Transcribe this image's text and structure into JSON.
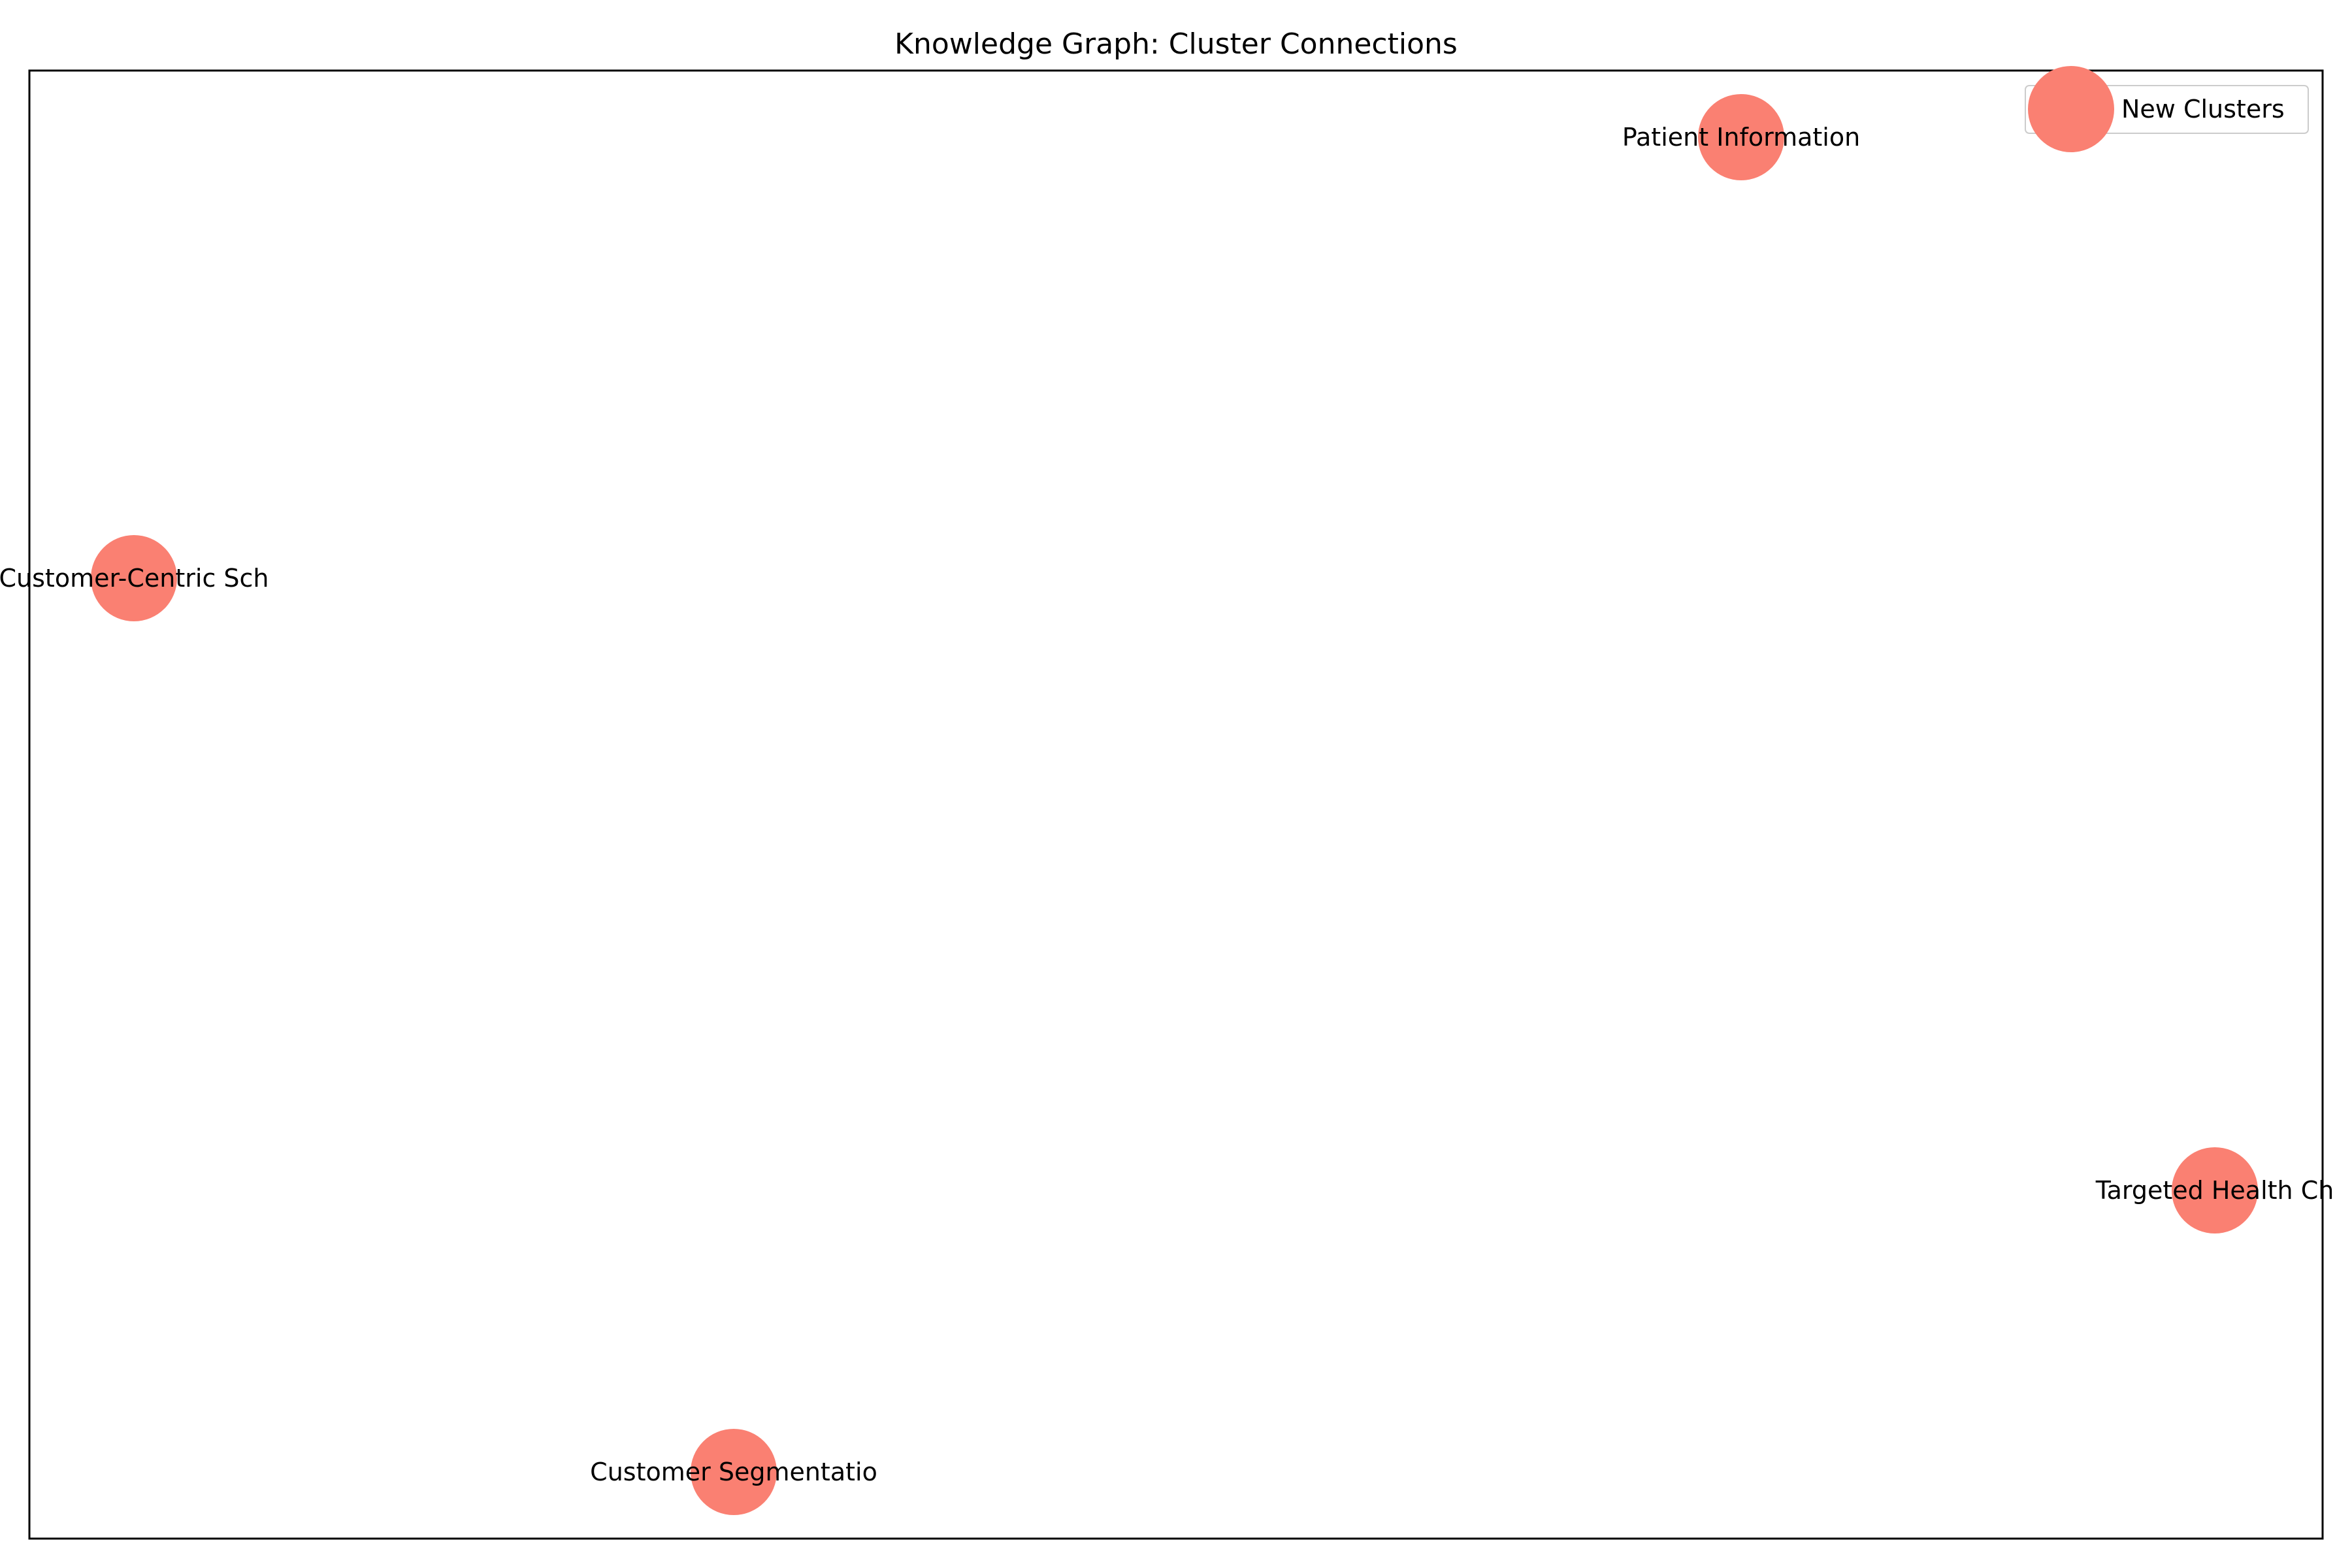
{
  "title": "Knowledge Graph: Cluster Connections",
  "legend": {
    "label": "New Clusters"
  },
  "colors": {
    "node": "#FA8072",
    "frame": "#000000",
    "legend_border": "#cccccc"
  },
  "nodes": [
    {
      "label": "Patient Information"
    },
    {
      "label": "Customer-Centric Sch"
    },
    {
      "label": "Targeted Health Ch"
    },
    {
      "label": "Customer Segmentatio"
    }
  ],
  "edges": []
}
